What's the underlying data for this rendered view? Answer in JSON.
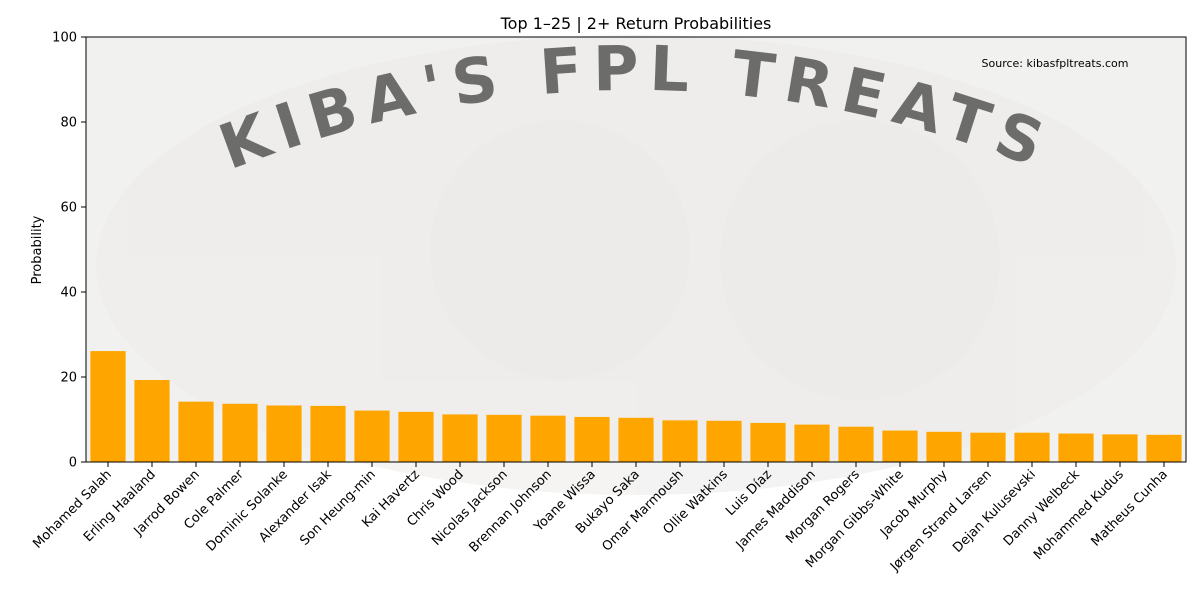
{
  "chart_data": {
    "type": "bar",
    "title": "Top 1–25 | 2+ Return Probabilities",
    "xlabel": "",
    "ylabel": "Probability",
    "ylim": [
      0,
      100
    ],
    "yticks": [
      0,
      20,
      40,
      60,
      80,
      100
    ],
    "grid": false,
    "legend": "none",
    "bar_color": "#FFA500",
    "plot_background": "#F1F1F0",
    "watermark_text": "KIBA'S FPL TREATS",
    "source": "Source: kibasfpltreats.com",
    "categories": [
      "Mohamed Salah",
      "Erling Haaland",
      "Jarrod Bowen",
      "Cole Palmer",
      "Dominic Solanke",
      "Alexander Isak",
      "Son Heung-min",
      "Kai Havertz",
      "Chris Wood",
      "Nicolas Jackson",
      "Brennan Johnson",
      "Yoane Wissa",
      "Bukayo Saka",
      "Omar Marmoush",
      "Ollie Watkins",
      "Luis Díaz",
      "James Maddison",
      "Morgan Rogers",
      "Morgan Gibbs-White",
      "Jacob Murphy",
      "Jørgen Strand Larsen",
      "Dejan Kulusevski",
      "Danny Welbeck",
      "Mohammed Kudus",
      "Matheus Cunha"
    ],
    "values": [
      26.1,
      19.3,
      14.2,
      13.7,
      13.3,
      13.2,
      12.1,
      11.8,
      11.2,
      11.1,
      10.9,
      10.6,
      10.4,
      9.8,
      9.7,
      9.2,
      8.8,
      8.3,
      7.4,
      7.1,
      6.9,
      6.9,
      6.7,
      6.5,
      6.4
    ]
  }
}
